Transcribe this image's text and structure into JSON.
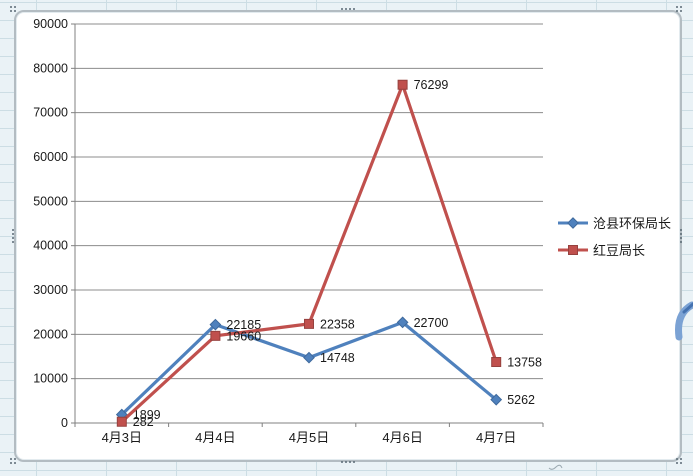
{
  "chart_data": {
    "type": "line",
    "title": "",
    "categories": [
      "4月3日",
      "4月4日",
      "4月5日",
      "4月6日",
      "4月7日"
    ],
    "series": [
      {
        "name": "沧县环保局长",
        "values": [
          1899,
          22185,
          14748,
          22700,
          5262
        ],
        "color": "#4f81bd",
        "edge_color": "#3e699c",
        "marker": "diamond"
      },
      {
        "name": "红豆局长",
        "values": [
          282,
          19660,
          22358,
          76299,
          13758
        ],
        "color": "#c0504d",
        "edge_color": "#96413e",
        "marker": "square"
      }
    ],
    "xlabel": "",
    "ylabel": "",
    "ylim": [
      0,
      90000
    ],
    "ytick_step": 10000,
    "ytick_labels": [
      "0",
      "10000",
      "20000",
      "30000",
      "40000",
      "50000",
      "60000",
      "70000",
      "80000",
      "90000"
    ],
    "grid": true,
    "data_labels": true,
    "legend_position": "right"
  },
  "colors": {
    "sheet_background": "#eaf2f6",
    "sheet_gridline": "#ccdde4",
    "frame_border": "#b3bcc2",
    "axis_line": "#808080",
    "chart_gridline": "#8c8c8c",
    "label_text": "#1a1a1a",
    "swoosh_blue": "#7ba2d4",
    "swoosh_dark": "#4472b0"
  }
}
